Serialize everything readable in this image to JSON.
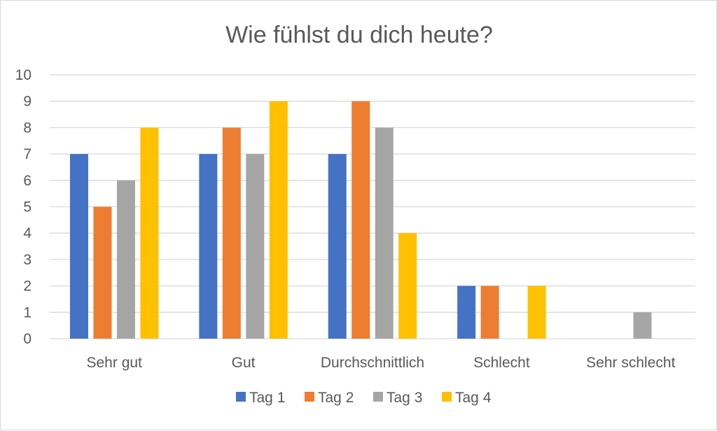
{
  "chart_data": {
    "type": "bar",
    "title": "Wie fühlst du dich heute?",
    "xlabel": "",
    "ylabel": "",
    "ylim": [
      0,
      10
    ],
    "yticks": [
      0,
      1,
      2,
      3,
      4,
      5,
      6,
      7,
      8,
      9,
      10
    ],
    "grid": true,
    "legend": "bottom",
    "categories": [
      "Sehr gut",
      "Gut",
      "Durchschnittlich",
      "Schlecht",
      "Sehr schlecht"
    ],
    "series": [
      {
        "name": "Tag 1",
        "color": "#4472C4",
        "values": [
          7,
          7,
          7,
          2,
          0
        ]
      },
      {
        "name": "Tag 2",
        "color": "#ED7D31",
        "values": [
          5,
          8,
          9,
          2,
          0
        ]
      },
      {
        "name": "Tag 3",
        "color": "#A5A5A5",
        "values": [
          6,
          7,
          8,
          0,
          1
        ]
      },
      {
        "name": "Tag 4",
        "color": "#FFC000",
        "values": [
          8,
          9,
          4,
          2,
          0
        ]
      }
    ]
  }
}
